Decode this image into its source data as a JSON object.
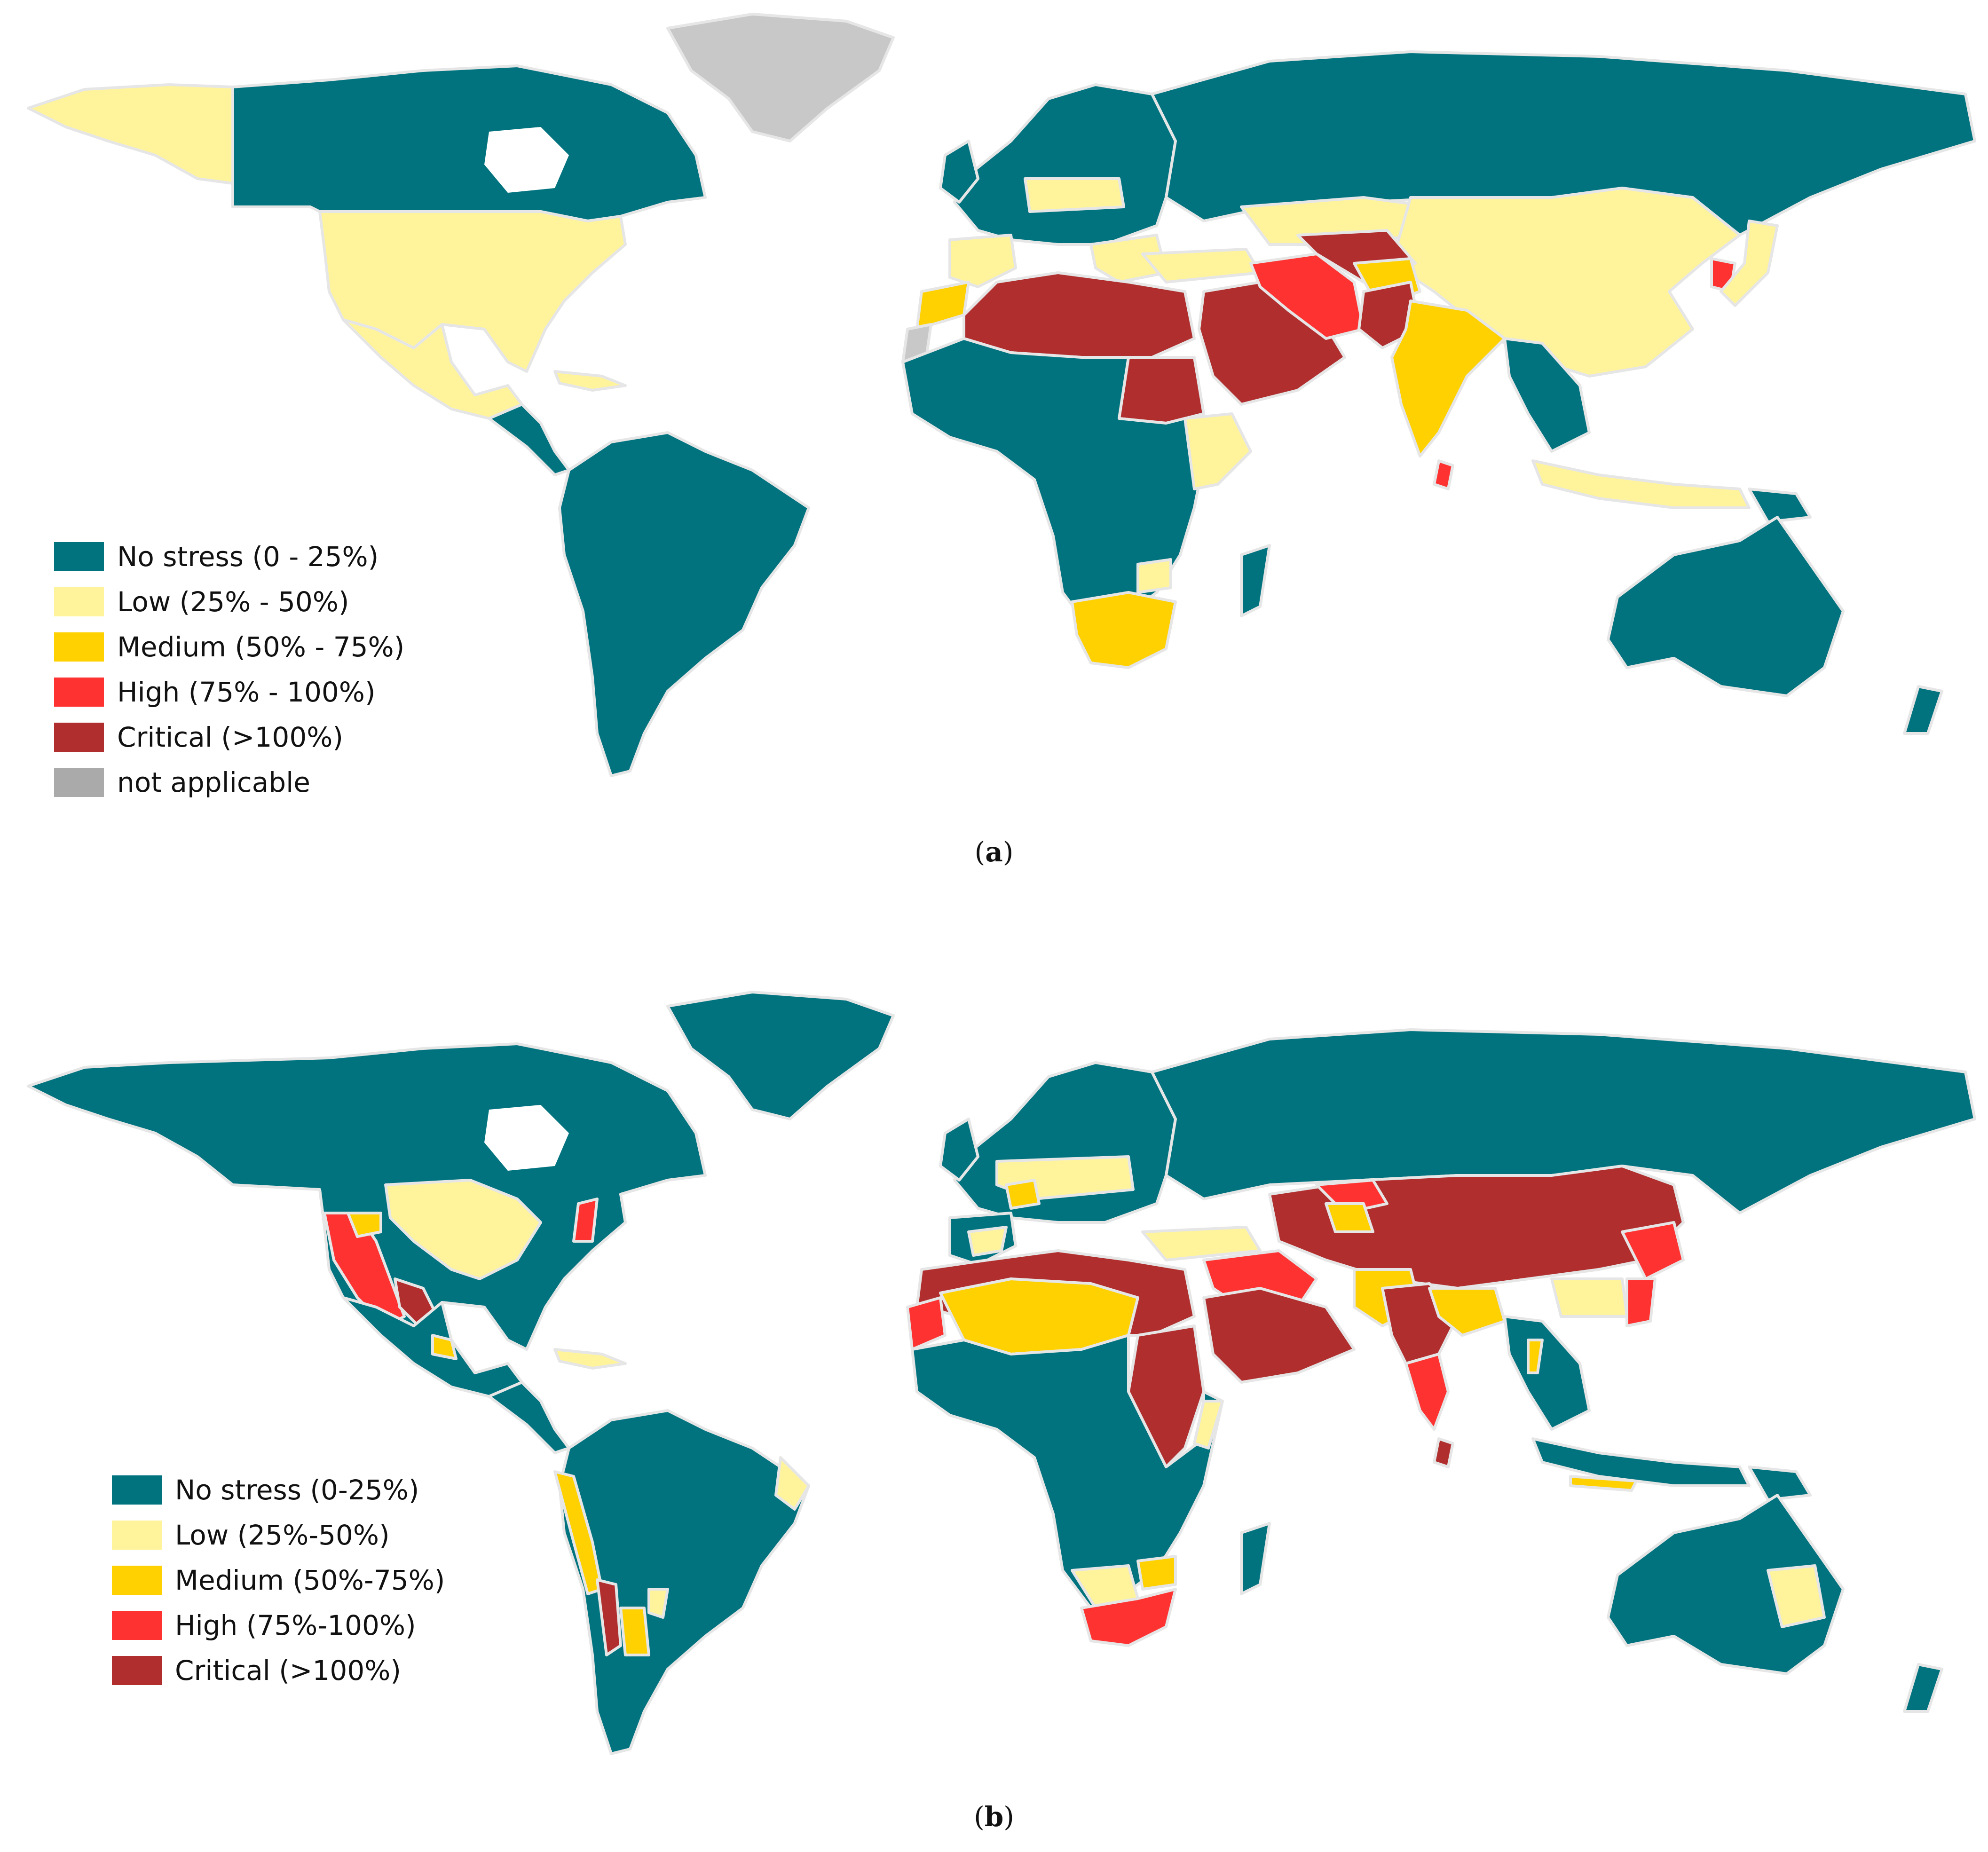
{
  "colors": {
    "no_stress": "#00737f",
    "low": "#fff49b",
    "medium": "#ffd100",
    "high": "#ff3232",
    "critical": "#b02e2e",
    "not_applicable": "#c8c8c8",
    "border": "#e6e6e6"
  },
  "panel_a": {
    "caption_letter": "a",
    "legend": [
      {
        "label": "No stress (0 - 25%)",
        "color_key": "no_stress"
      },
      {
        "label": "Low (25% - 50%)",
        "color_key": "low"
      },
      {
        "label": "Medium (50% - 75%)",
        "color_key": "medium"
      },
      {
        "label": "High (75% - 100%)",
        "color_key": "high"
      },
      {
        "label": "Critical (>100%)",
        "color_key": "critical"
      },
      {
        "label": "not applicable",
        "color_key": "not_applicable"
      }
    ]
  },
  "panel_b": {
    "caption_letter": "b",
    "legend": [
      {
        "label": "No stress (0-25%)",
        "color_key": "no_stress"
      },
      {
        "label": "Low (25%-50%)",
        "color_key": "low"
      },
      {
        "label": "Medium (50%-75%)",
        "color_key": "medium"
      },
      {
        "label": "High (75%-100%)",
        "color_key": "high"
      },
      {
        "label": "Critical (>100%)",
        "color_key": "critical"
      }
    ]
  }
}
